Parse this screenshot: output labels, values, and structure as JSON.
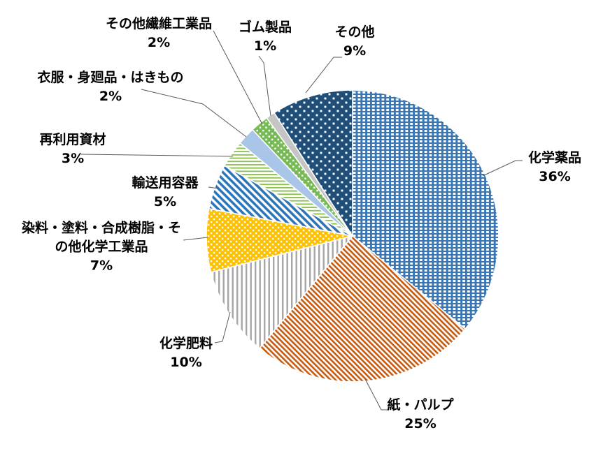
{
  "chart_data": {
    "type": "pie",
    "title": "",
    "direction": "clockwise",
    "start_angle_deg": 0,
    "legend_position": "none",
    "background_color": "#FFFFFF",
    "text_color": "#000000",
    "leader_line_color": "#5A5A5A",
    "slice_border_color": "#FFFFFF",
    "slices": [
      {
        "label": "化学薬品",
        "value": 36,
        "pct_label": "36%",
        "color": "#3A76B4",
        "pattern": "grid",
        "label_lines": [
          "化学薬品",
          "36%"
        ]
      },
      {
        "label": "紙・パルプ",
        "value": 25,
        "pct_label": "25%",
        "color": "#C55A11",
        "pattern": "diag-thin",
        "label_lines": [
          "紙・パルプ",
          "25%"
        ]
      },
      {
        "label": "化学肥料",
        "value": 10,
        "pct_label": "10%",
        "color": "#A6A6A6",
        "pattern": "vstripe",
        "label_lines": [
          "化学肥料",
          "10%"
        ]
      },
      {
        "label": "染料・塗料・合成樹脂・その他化学工業品",
        "value": 7,
        "pct_label": "7%",
        "color": "#FFC000",
        "pattern": "dots",
        "label_lines": [
          "染料・塗料・合成樹脂・そ",
          "の他化学工業品",
          "7%"
        ]
      },
      {
        "label": "輸送用容器",
        "value": 5,
        "pct_label": "5%",
        "color": "#2E75B6",
        "pattern": "diag-wide",
        "label_lines": [
          "輸送用容器",
          "5%"
        ]
      },
      {
        "label": "再利用資材",
        "value": 3,
        "pct_label": "3%",
        "color": "#8DC152",
        "pattern": "hstripe",
        "label_lines": [
          "再利用資材",
          "3%"
        ]
      },
      {
        "label": "衣服・身廻品・はきもの",
        "value": 2,
        "pct_label": "2%",
        "color": "#A9C6E8",
        "pattern": "solid",
        "label_lines": [
          "衣服・身廻品・はきもの",
          "2%"
        ]
      },
      {
        "label": "その他繊維工業品",
        "value": 2,
        "pct_label": "2%",
        "color": "#77B955",
        "pattern": "dots",
        "label_lines": [
          "その他繊維工業品",
          "2%"
        ]
      },
      {
        "label": "ゴム製品",
        "value": 1,
        "pct_label": "1%",
        "color": "#C5C5C5",
        "pattern": "solid",
        "label_lines": [
          "ゴム製品",
          "1%"
        ]
      },
      {
        "label": "その他",
        "value": 9,
        "pct_label": "9%",
        "color": "#1F4E79",
        "pattern": "sparse-dots",
        "label_lines": [
          "その他",
          "9%"
        ]
      }
    ]
  }
}
